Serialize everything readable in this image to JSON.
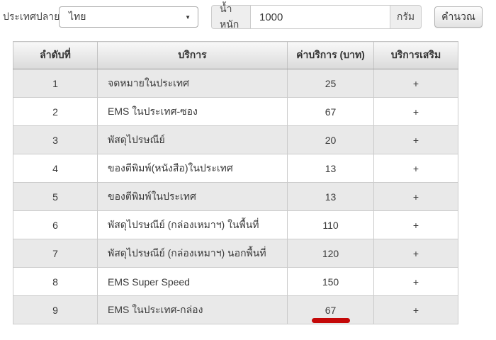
{
  "filters": {
    "destination_label": "ประเทศปลายทาง",
    "destination_selected": "ไทย",
    "weight_label": "น้ำหนัก",
    "weight_value": "1000",
    "weight_unit": "กรัม",
    "calculate_label": "คำนวณ"
  },
  "icons": {
    "dropdown_arrow": "▼"
  },
  "table": {
    "headers": [
      "ลำดับที่",
      "บริการ",
      "ค่าบริการ (บาท)",
      "บริการเสริม"
    ],
    "rows": [
      {
        "no": "1",
        "service": "จดหมายในประเทศ",
        "fee": "25",
        "extra": "+"
      },
      {
        "no": "2",
        "service": "EMS ในประเทศ-ซอง",
        "fee": "67",
        "extra": "+"
      },
      {
        "no": "3",
        "service": "พัสดุไปรษณีย์",
        "fee": "20",
        "extra": "+"
      },
      {
        "no": "4",
        "service": "ของตีพิมพ์(หนังสือ)ในประเทศ",
        "fee": "13",
        "extra": "+"
      },
      {
        "no": "5",
        "service": "ของตีพิมพ์ในประเทศ",
        "fee": "13",
        "extra": "+"
      },
      {
        "no": "6",
        "service": "พัสดุไปรษณีย์ (กล่องเหมาฯ) ในพื้นที่",
        "fee": "110",
        "extra": "+"
      },
      {
        "no": "7",
        "service": "พัสดุไปรษณีย์ (กล่องเหมาฯ) นอกพื้นที่",
        "fee": "120",
        "extra": "+"
      },
      {
        "no": "8",
        "service": "EMS Super Speed",
        "fee": "150",
        "extra": "+"
      },
      {
        "no": "9",
        "service": "EMS ในประเทศ-กล่อง",
        "fee": "67",
        "extra": "+"
      }
    ]
  },
  "annotation": {
    "type": "red-underline",
    "marked_row": "9",
    "marked_value": "67",
    "color": "#c40808"
  },
  "colors": {
    "row_stripe": "#e9e9e9",
    "table_border": "#cbcbcb",
    "header_gradient_top": "#f8f8f8",
    "header_gradient_bottom": "#dadada",
    "addon_background": "#eeeeee",
    "annotation_red": "#c40808"
  }
}
